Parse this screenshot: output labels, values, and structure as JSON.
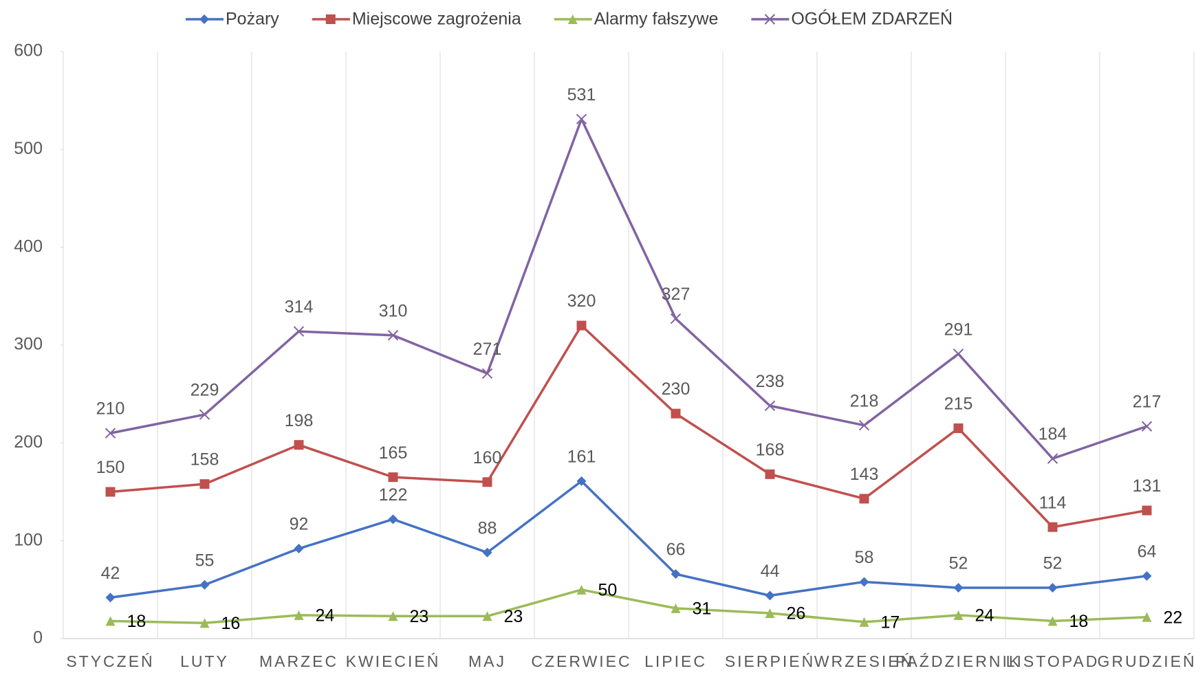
{
  "chart_data": {
    "type": "line",
    "categories": [
      "STYCZEŃ",
      "LUTY",
      "MARZEC",
      "KWIECIEŃ",
      "MAJ",
      "CZERWIEC",
      "LIPIEC",
      "SIERPIEŃ",
      "WRZESIEŃ",
      "PAŹDZIERNIK",
      "LISTOPAD",
      "GRUDZIEŃ"
    ],
    "series": [
      {
        "name": "Pożary",
        "color": "#4472c4",
        "marker": "diamond",
        "values": [
          42,
          55,
          92,
          122,
          88,
          161,
          66,
          44,
          58,
          52,
          52,
          64
        ]
      },
      {
        "name": "Miejscowe zagrożenia",
        "color": "#c0504d",
        "marker": "square",
        "values": [
          150,
          158,
          198,
          165,
          160,
          320,
          230,
          168,
          143,
          215,
          114,
          131
        ]
      },
      {
        "name": "Alarmy fałszywe",
        "color": "#9bbb59",
        "marker": "triangle",
        "values": [
          18,
          16,
          24,
          23,
          23,
          50,
          31,
          26,
          17,
          24,
          18,
          22
        ]
      },
      {
        "name": "OGÓŁEM ZDARZEŃ",
        "color": "#8064a2",
        "marker": "x",
        "values": [
          210,
          229,
          314,
          310,
          271,
          531,
          327,
          238,
          218,
          291,
          184,
          217
        ]
      }
    ],
    "ylim": [
      0,
      600
    ],
    "yticks": [
      0,
      100,
      200,
      300,
      400,
      500,
      600
    ],
    "grid": true,
    "legend": "top"
  }
}
